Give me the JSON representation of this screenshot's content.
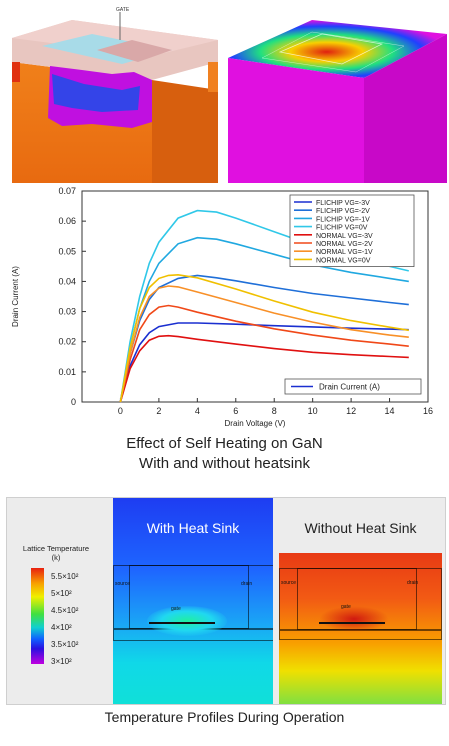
{
  "top_image": {
    "label": "GATE"
  },
  "caption_chart_line1": "Effect of Self Heating on GaN",
  "caption_chart_line2": "With and without heatsink",
  "caption_profiles": "Temperature Profiles During Operation",
  "temperature_panel": {
    "legend_title_line1": "Lattice Temperature",
    "legend_title_line2": "(k)",
    "colorbar_labels": [
      "5.5×10²",
      "5×10²",
      "4.5×10²",
      "4×10²",
      "3.5×10²",
      "3×10²"
    ],
    "left_title": "With Heat Sink",
    "right_title": "Without Heat Sink",
    "structure_labels": {
      "source": "source",
      "drain": "drain",
      "gate": "gate"
    }
  },
  "chart_data": {
    "type": "line",
    "title": "",
    "xlabel": "Drain Voltage (V)",
    "ylabel": "Drain Current (A)",
    "xlim": [
      -2,
      16
    ],
    "ylim": [
      0,
      0.07
    ],
    "x_ticks": [
      0,
      2,
      4,
      6,
      8,
      10,
      12,
      14,
      16
    ],
    "y_ticks": [
      "0",
      "0.01",
      "0.02",
      "0.03",
      "0.04",
      "0.05",
      "0.06",
      "0.07"
    ],
    "legend_top": "top-right",
    "legend_bottom": "bottom-right",
    "bottom_legend_entry": {
      "name": "Drain Current (A)",
      "color": "#1a2fd0"
    },
    "series": [
      {
        "name": "FLICHIP VG=-3V",
        "color": "#1a2fd0",
        "x": [
          0,
          0.5,
          1,
          1.5,
          2,
          3,
          4,
          6,
          8,
          10,
          12,
          14,
          15
        ],
        "y": [
          0,
          0.012,
          0.019,
          0.023,
          0.025,
          0.0262,
          0.0262,
          0.0258,
          0.0253,
          0.0249,
          0.0245,
          0.0242,
          0.024
        ]
      },
      {
        "name": "FLICHIP VG=-2V",
        "color": "#1f6fd8",
        "x": [
          0,
          0.5,
          1,
          1.5,
          2,
          3,
          4,
          5,
          6,
          8,
          10,
          12,
          14,
          15
        ],
        "y": [
          0,
          0.016,
          0.027,
          0.034,
          0.038,
          0.041,
          0.042,
          0.0412,
          0.0402,
          0.038,
          0.036,
          0.0345,
          0.033,
          0.0323
        ]
      },
      {
        "name": "FLICHIP VG=-1V",
        "color": "#20a8e0",
        "x": [
          0,
          0.5,
          1,
          1.5,
          2,
          3,
          4,
          5,
          6,
          8,
          10,
          12,
          14,
          15
        ],
        "y": [
          0,
          0.018,
          0.031,
          0.04,
          0.046,
          0.0525,
          0.0545,
          0.054,
          0.0525,
          0.049,
          0.0455,
          0.043,
          0.041,
          0.04
        ]
      },
      {
        "name": "FLICHIP VG=0V",
        "color": "#30c8e8",
        "x": [
          0,
          0.5,
          1,
          1.5,
          2,
          3,
          4,
          5,
          6,
          8,
          10,
          12,
          14,
          15
        ],
        "y": [
          0,
          0.02,
          0.035,
          0.046,
          0.053,
          0.061,
          0.0635,
          0.063,
          0.061,
          0.0565,
          0.052,
          0.0485,
          0.045,
          0.0435
        ]
      },
      {
        "name": "NORMAL VG=-3V",
        "color": "#e01010",
        "x": [
          0,
          0.5,
          1,
          1.5,
          2,
          2.5,
          3,
          4,
          6,
          8,
          10,
          12,
          14,
          15
        ],
        "y": [
          0,
          0.011,
          0.017,
          0.0205,
          0.0218,
          0.022,
          0.0217,
          0.0208,
          0.0192,
          0.0177,
          0.0165,
          0.0157,
          0.0151,
          0.0148
        ]
      },
      {
        "name": "NORMAL VG=-2V",
        "color": "#f04818",
        "x": [
          0,
          0.5,
          1,
          1.5,
          2,
          2.5,
          3,
          4,
          6,
          8,
          10,
          12,
          14,
          15
        ],
        "y": [
          0,
          0.014,
          0.024,
          0.029,
          0.0315,
          0.032,
          0.0315,
          0.0298,
          0.0268,
          0.0243,
          0.0222,
          0.0205,
          0.0192,
          0.0185
        ]
      },
      {
        "name": "NORMAL VG=-1V",
        "color": "#f89028",
        "x": [
          0,
          0.5,
          1,
          1.5,
          2,
          2.5,
          3,
          4,
          6,
          8,
          10,
          12,
          14,
          15
        ],
        "y": [
          0,
          0.016,
          0.028,
          0.035,
          0.0378,
          0.0385,
          0.0382,
          0.0365,
          0.033,
          0.0295,
          0.0265,
          0.024,
          0.0222,
          0.0215
        ]
      },
      {
        "name": "NORMAL VG=0V",
        "color": "#f0c000",
        "x": [
          0,
          0.5,
          1,
          1.5,
          2,
          2.5,
          3,
          4,
          6,
          8,
          10,
          12,
          14,
          15
        ],
        "y": [
          0,
          0.018,
          0.031,
          0.038,
          0.041,
          0.042,
          0.0422,
          0.0412,
          0.0375,
          0.0335,
          0.0298,
          0.027,
          0.0248,
          0.0238
        ]
      }
    ]
  }
}
